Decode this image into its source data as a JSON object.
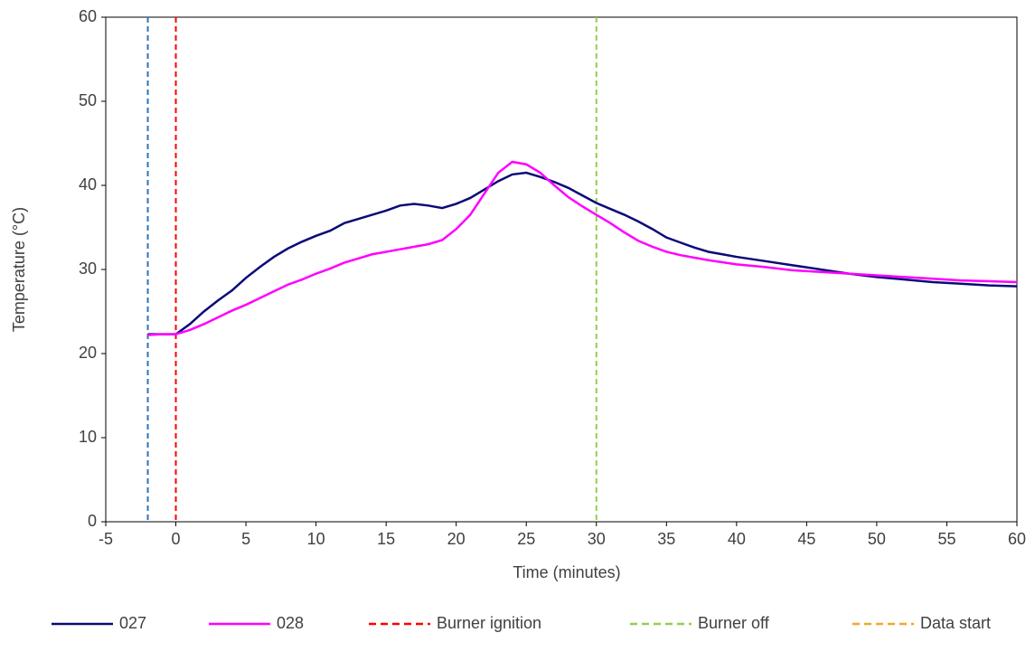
{
  "chart_data": {
    "type": "line",
    "x_label": "Time (minutes)",
    "y_label": "Temperature (°C)",
    "xlim": [
      -5,
      60
    ],
    "xticks": [
      -5,
      0,
      5,
      10,
      15,
      20,
      25,
      30,
      35,
      40,
      45,
      50,
      55,
      60
    ],
    "ylim": [
      0,
      60
    ],
    "yticks": [
      0,
      10,
      20,
      30,
      40,
      50,
      60
    ],
    "grid": false,
    "series": [
      {
        "name": "027",
        "color": "#0a0a78",
        "x": [
          -2,
          -1,
          0,
          1,
          2,
          3,
          4,
          5,
          6,
          7,
          8,
          9,
          10,
          11,
          12,
          13,
          14,
          15,
          16,
          17,
          18,
          19,
          20,
          21,
          22,
          23,
          24,
          25,
          26,
          27,
          28,
          29,
          30,
          31,
          32,
          33,
          34,
          35,
          36,
          37,
          38,
          39,
          40,
          42,
          44,
          46,
          48,
          50,
          52,
          54,
          56,
          58,
          60
        ],
        "values": [
          22.3,
          22.3,
          22.3,
          23.5,
          25,
          26.3,
          27.5,
          29,
          30.3,
          31.5,
          32.5,
          33.3,
          34,
          34.6,
          35.5,
          36,
          36.5,
          37,
          37.6,
          37.8,
          37.6,
          37.3,
          37.8,
          38.5,
          39.5,
          40.5,
          41.3,
          41.5,
          41,
          40.4,
          39.7,
          38.8,
          37.9,
          37.2,
          36.5,
          35.7,
          34.8,
          33.8,
          33.2,
          32.6,
          32.1,
          31.8,
          31.5,
          31,
          30.5,
          30,
          29.5,
          29.1,
          28.8,
          28.5,
          28.3,
          28.1,
          28
        ]
      },
      {
        "name": "028",
        "color": "#ff00ff",
        "x": [
          -2,
          -1,
          0,
          1,
          2,
          3,
          4,
          5,
          6,
          7,
          8,
          9,
          10,
          11,
          12,
          13,
          14,
          15,
          16,
          17,
          18,
          19,
          20,
          21,
          22,
          23,
          24,
          25,
          26,
          27,
          28,
          29,
          30,
          31,
          32,
          33,
          34,
          35,
          36,
          37,
          38,
          40,
          42,
          44,
          46,
          48,
          50,
          52,
          54,
          56,
          58,
          60
        ],
        "values": [
          22.2,
          22.3,
          22.3,
          22.8,
          23.5,
          24.3,
          25.1,
          25.8,
          26.6,
          27.4,
          28.2,
          28.8,
          29.5,
          30.1,
          30.8,
          31.3,
          31.8,
          32.1,
          32.4,
          32.7,
          33,
          33.5,
          34.8,
          36.5,
          39,
          41.5,
          42.8,
          42.5,
          41.5,
          40,
          38.6,
          37.5,
          36.5,
          35.5,
          34.4,
          33.4,
          32.7,
          32.1,
          31.7,
          31.4,
          31.1,
          30.6,
          30.3,
          29.9,
          29.7,
          29.5,
          29.3,
          29.1,
          28.9,
          28.7,
          28.6,
          28.5
        ]
      }
    ],
    "reference_lines": [
      {
        "name": "Burner ignition",
        "x": 0,
        "color": "#ff0000"
      },
      {
        "name": "Burner off",
        "x": 30,
        "color": "#92d050"
      },
      {
        "name": "Data start",
        "x": null,
        "color": "#f5a623"
      }
    ],
    "markers": [
      {
        "x": -2,
        "color": "#2e75b6"
      }
    ]
  }
}
